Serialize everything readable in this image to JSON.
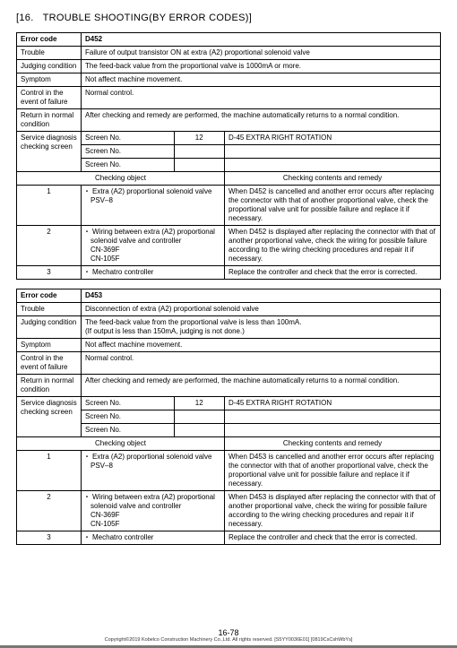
{
  "header": {
    "bracket_open": "[",
    "section_no": "16.",
    "title": "TROUBLE SHOOTING(BY ERROR CODES)",
    "bracket_close": "]"
  },
  "labels": {
    "error_code": "Error code",
    "trouble": "Trouble",
    "judging": "Judging condition",
    "symptom": "Symptom",
    "control": "Control in the event of failure",
    "return": "Return in normal condition",
    "service": "Service diagnosis checking screen",
    "screen_no": "Screen No.",
    "checking_obj": "Checking object",
    "checking_rem": "Checking contents and remedy"
  },
  "e1": {
    "code": "D452",
    "trouble": "Failure of output transistor ON at extra (A2) proportional solenoid valve",
    "judging": "The feed-back value from the proportional valve is 1000mA or more.",
    "symptom": "Not affect machine movement.",
    "control": "Normal control.",
    "return": "After checking and remedy are performed, the machine automatically returns to a normal condition.",
    "screen_num": "12",
    "screen_name": "D-45 EXTRA RIGHT ROTATION",
    "items": [
      {
        "idx": "1",
        "obj_l1": "Extra (A2) proportional solenoid valve",
        "obj_l2": "PSV–8",
        "rem": "When D452 is cancelled and another error occurs after replacing the connector with that of another proportional valve, check the proportional valve unit for possible failure and replace it if necessary."
      },
      {
        "idx": "2",
        "obj_l1": "Wiring between extra (A2) proportional solenoid valve and controller",
        "obj_l2": "CN-369F",
        "obj_l3": "CN-105F",
        "rem": "When D452 is displayed after replacing the connector with that of another proportional valve, check the wiring for possible failure according to the wiring checking procedures and repair it if necessary."
      },
      {
        "idx": "3",
        "obj_l1": "Mechatro controller",
        "rem": "Replace the controller and check that the error is corrected."
      }
    ]
  },
  "e2": {
    "code": "D453",
    "trouble": "Disconnection of extra (A2) proportional solenoid valve",
    "judging": "The feed-back value from the proportional valve is less than 100mA.\n(If output is less than 150mA, judging is not done.)",
    "symptom": "Not affect machine movement.",
    "control": "Normal control.",
    "return": "After checking and remedy are performed, the machine automatically returns to a normal condition.",
    "screen_num": "12",
    "screen_name": "D-45 EXTRA RIGHT ROTATION",
    "items": [
      {
        "idx": "1",
        "obj_l1": "Extra (A2) proportional solenoid valve",
        "obj_l2": "PSV–8",
        "rem": "When D453 is cancelled and another error occurs after replacing the connector with that of another proportional valve, check the proportional valve unit for possible failure and replace it if necessary."
      },
      {
        "idx": "2",
        "obj_l1": "Wiring between extra (A2) proportional solenoid valve and controller",
        "obj_l2": "CN-369F",
        "obj_l3": "CN-105F",
        "rem": "When D453 is displayed after replacing the connector with that of another proportional valve, check the wiring for possible failure according to the wiring checking procedures and repair it if necessary."
      },
      {
        "idx": "3",
        "obj_l1": "Mechatro controller",
        "rem": "Replace the controller and check that the error is corrected."
      }
    ]
  },
  "footer": {
    "page": "16-78",
    "copyright": "Copyright©2019 Kobelco Construction Machinery Co.,Ltd. All rights reserved. [S5YY0036E01] [0819CsCshWbYs]"
  }
}
